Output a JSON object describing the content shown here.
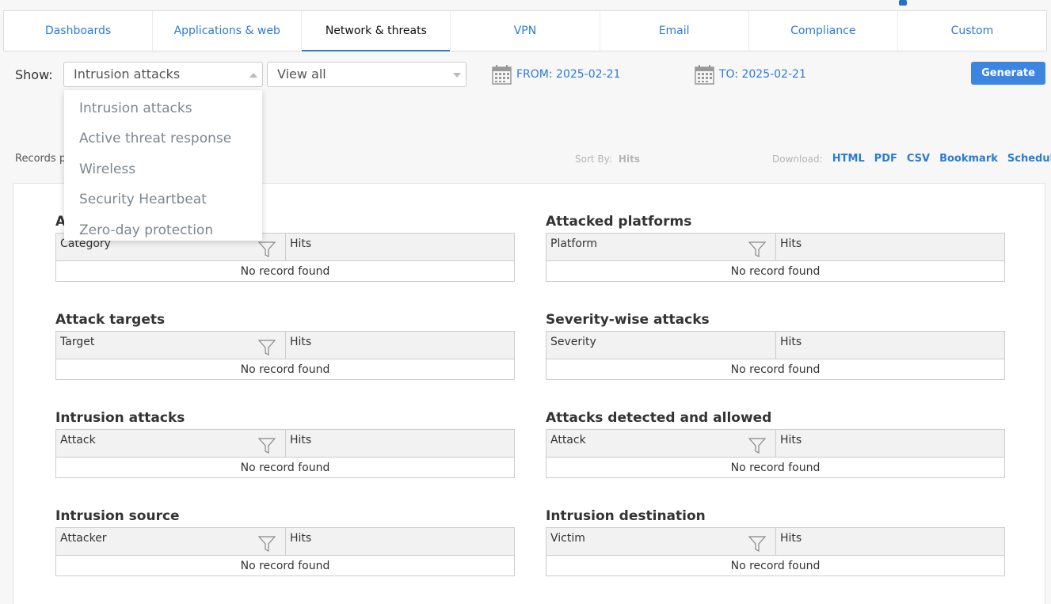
{
  "tabs": [
    {
      "label": "Dashboards",
      "active": false
    },
    {
      "label": "Applications & web",
      "active": false
    },
    {
      "label": "Network & threats",
      "active": true
    },
    {
      "label": "VPN",
      "active": false
    },
    {
      "label": "Email",
      "active": false
    },
    {
      "label": "Compliance",
      "active": false
    },
    {
      "label": "Custom",
      "active": false
    }
  ],
  "filter": {
    "show_label": "Show:",
    "report_select": "Intrusion attacks",
    "view_select": "View all",
    "from_label": "FROM: 2025-02-21",
    "to_label": "TO: 2025-02-21",
    "generate_label": "Generate"
  },
  "dropdown": {
    "items": [
      "Intrusion attacks",
      "Active threat response",
      "Wireless",
      "Security Heartbeat",
      "Zero-day protection"
    ]
  },
  "toolbar": {
    "records_label": "Records p",
    "sort_by_label": "Sort By:",
    "sort_by_value": "Hits",
    "download_label": "Download:",
    "download_links": [
      "HTML",
      "PDF",
      "CSV",
      "Bookmark",
      "Schedule"
    ]
  },
  "reports": [
    {
      "title": "A",
      "col1": "Category",
      "col2": "Hits",
      "empty": "No record found",
      "filter": true
    },
    {
      "title": "Attacked platforms",
      "col1": "Platform",
      "col2": "Hits",
      "empty": "No record found",
      "filter": true
    },
    {
      "title": "Attack targets",
      "col1": "Target",
      "col2": "Hits",
      "empty": "No record found",
      "filter": true
    },
    {
      "title": "Severity-wise attacks",
      "col1": "Severity",
      "col2": "Hits",
      "empty": "No record found",
      "filter": false
    },
    {
      "title": "Intrusion attacks",
      "col1": "Attack",
      "col2": "Hits",
      "empty": "No record found",
      "filter": true
    },
    {
      "title": "Attacks detected and allowed",
      "col1": "Attack",
      "col2": "Hits",
      "empty": "No record found",
      "filter": true
    },
    {
      "title": "Intrusion source",
      "col1": "Attacker",
      "col2": "Hits",
      "empty": "No record found",
      "filter": true
    },
    {
      "title": "Intrusion destination",
      "col1": "Victim",
      "col2": "Hits",
      "empty": "No record found",
      "filter": true
    }
  ],
  "colors": {
    "accent": "#2b7bd6",
    "button": "#3d86e0",
    "background": "#f7f7f7"
  }
}
